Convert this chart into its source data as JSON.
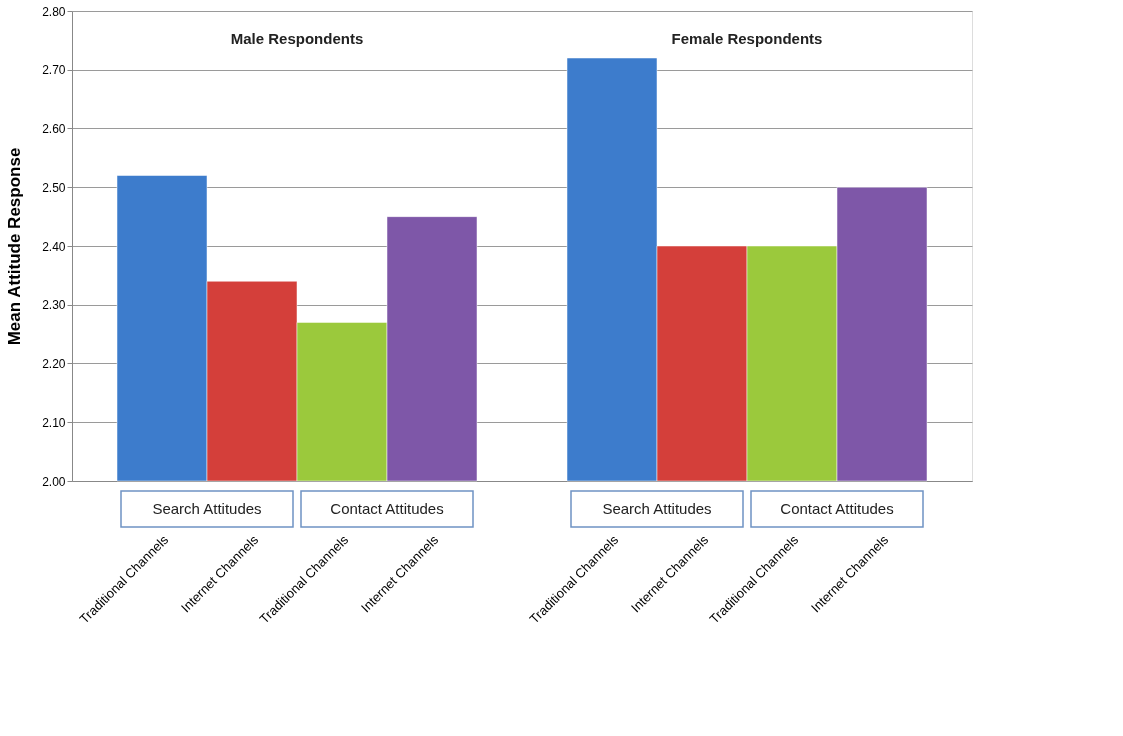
{
  "chart_data": {
    "type": "bar",
    "ylabel": "Mean Attitude Response",
    "categories": [
      "Traditional Channels",
      "Internet Channels",
      "Traditional Channels",
      "Internet Channels",
      null,
      "Traditional Channels",
      "Internet Channels",
      "Traditional Channels",
      "Internet Channels"
    ],
    "values": [
      2.52,
      2.34,
      2.27,
      2.45,
      null,
      2.72,
      2.4,
      2.4,
      2.5
    ],
    "colors": [
      "#3d7ccc",
      "#d43f3a",
      "#9bc93c",
      "#7e57a8",
      null,
      "#3d7ccc",
      "#d43f3a",
      "#9bc93c",
      "#7e57a8"
    ],
    "ylim": [
      2.0,
      2.8
    ],
    "yticks": [
      {
        "value": 2.0,
        "label": "2.00"
      },
      {
        "value": 2.1,
        "label": "2.10"
      },
      {
        "value": 2.2,
        "label": "2.20"
      },
      {
        "value": 2.3,
        "label": "2.30"
      },
      {
        "value": 2.4,
        "label": "2.40"
      },
      {
        "value": 2.5,
        "label": "2.50"
      },
      {
        "value": 2.6,
        "label": "2.60"
      },
      {
        "value": 2.7,
        "label": "2.70"
      },
      {
        "value": 2.8,
        "label": "2.80"
      }
    ],
    "grid": "y",
    "annotations": [
      "Male Respondents",
      "Female Respondents",
      "Search Attitudes",
      "Contact Attitudes",
      "Search Attitudes",
      "Contact Attitudes"
    ]
  }
}
